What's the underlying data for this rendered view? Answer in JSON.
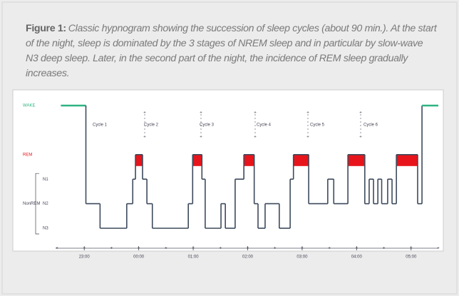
{
  "caption": {
    "label": "Figure 1:",
    "text": "Classic hypnogram showing the succession of sleep cycles (about 90 min.). At the start of the night, sleep is dominated by the 3 stages of NREM sleep and in particular by slow-wave N3 deep sleep. Later, in the second part of the night, the incidence of REM sleep gradually increases."
  },
  "chart_data": {
    "type": "hypnogram",
    "group_label": "NonREM",
    "cycles": [
      "Cycle 1",
      "Cycle 2",
      "Cycle 3",
      "Cycle 4",
      "Cycle 5",
      "Cycle 6"
    ],
    "x": [
      22.57,
      23.03,
      23.29,
      23.78,
      23.89,
      23.94,
      24.07,
      24.15,
      24.25,
      24.91,
      24.99,
      25.16,
      25.22,
      25.51,
      25.59,
      25.77,
      25.93,
      26.12,
      26.19,
      26.32,
      26.58,
      26.78,
      26.84,
      27.12,
      27.47,
      27.58,
      27.84,
      28.15,
      28.23,
      28.31,
      28.39,
      28.46,
      28.57,
      28.65,
      28.73,
      29.12,
      29.2
    ],
    "values": [
      5,
      1,
      0,
      1,
      2,
      3,
      2,
      1,
      0,
      1,
      3,
      2,
      0,
      1,
      0,
      2,
      3,
      1,
      0,
      1,
      0,
      2,
      3,
      1,
      2,
      1,
      3,
      1,
      2,
      1,
      2,
      1,
      2,
      1,
      3,
      1,
      5
    ],
    "colors": {
      "line": "#3d4a5c",
      "wake": "#2fb383",
      "rem": "#e8141b"
    },
    "xlim": [
      22.5,
      29.5
    ],
    "xticks": [
      {
        "value": 23,
        "label": "23:00"
      },
      {
        "value": 24,
        "label": "00:00"
      },
      {
        "value": 25,
        "label": "01:00"
      },
      {
        "value": 26,
        "label": "02:00"
      },
      {
        "value": 27,
        "label": "03:00"
      },
      {
        "value": 28,
        "label": "04:00"
      },
      {
        "value": 29,
        "label": "05:00"
      }
    ],
    "ylim": [
      0,
      5
    ],
    "yticks": [
      {
        "value": 0,
        "label": "N3"
      },
      {
        "value": 1,
        "label": "N2"
      },
      {
        "value": 2,
        "label": "N1"
      },
      {
        "value": 3,
        "label": "REM"
      },
      {
        "value": 5,
        "label": "WAKE"
      }
    ]
  }
}
